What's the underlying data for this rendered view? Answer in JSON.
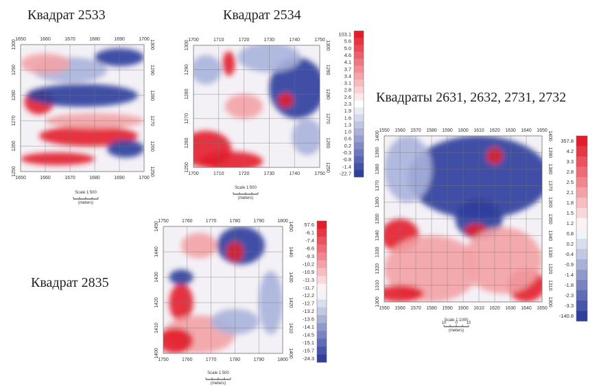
{
  "panels": [
    {
      "title": "Квадрат 2533",
      "x_ticks": [
        "1650",
        "1660",
        "1670",
        "1680",
        "1690",
        "1700"
      ],
      "y_ticks": [
        "1300",
        "1290",
        "1280",
        "1270",
        "1260",
        "1250"
      ],
      "scale": "Scale 1:500",
      "scale_unit": "(meters)"
    },
    {
      "title": "Квадрат 2534",
      "x_ticks": [
        "1700",
        "1710",
        "1720",
        "1730",
        "1740",
        "1750"
      ],
      "y_ticks": [
        "1300",
        "1290",
        "1280",
        "1270",
        "1260",
        "1250"
      ],
      "colorbar": [
        "103.1",
        "5.6",
        "5.0",
        "4.6",
        "4.1",
        "3.7",
        "3.4",
        "3.1",
        "2.8",
        "2.6",
        "2.3",
        "1.9",
        "1.6",
        "1.3",
        "1.0",
        "0.6",
        "0.2",
        "-0.3",
        "-0.8",
        "-1.4",
        "-22.7"
      ],
      "scale": "Scale 1:500",
      "scale_unit": "(meters)"
    },
    {
      "title": "Квадрат 2835",
      "x_ticks": [
        "1750",
        "1760",
        "1770",
        "1780",
        "1790",
        "1800"
      ],
      "y_ticks": [
        "1450",
        "1440",
        "1430",
        "1420",
        "1410",
        "1400"
      ],
      "colorbar": [
        "57.6",
        "-6.1",
        "-7.4",
        "-8.6",
        "-9.3",
        "-10.2",
        "-10.9",
        "-11.3",
        "-11.7",
        "-12.2",
        "-12.7",
        "-13.2",
        "-13.6",
        "-14.1",
        "-14.5",
        "-15.1",
        "-15.7",
        "-24.3"
      ],
      "scale": "Scale 1:500",
      "scale_unit": "(meters)"
    },
    {
      "title": "Квадраты 2631, 2632, 2731, 2732",
      "x_ticks": [
        "1550",
        "1560",
        "1570",
        "1580",
        "1590",
        "1600",
        "1610",
        "1620",
        "1630",
        "1640",
        "1650"
      ],
      "y_ticks": [
        "1400",
        "1390",
        "1380",
        "1370",
        "1360",
        "1350",
        "1340",
        "1330",
        "1320",
        "1310",
        "1300"
      ],
      "colorbar": [
        "357.8",
        "4.2",
        "3.3",
        "2.8",
        "2.5",
        "2.1",
        "1.8",
        "1.5",
        "1.2",
        "0.8",
        "0.2",
        "-0.4",
        "-0.9",
        "-1.4",
        "-1.8",
        "-2.3",
        "-3.3",
        "-140.8"
      ],
      "scale": "Scale 1:1000",
      "scale_bar": [
        "10",
        "0",
        "10"
      ],
      "scale_unit": "(meters)"
    }
  ]
}
